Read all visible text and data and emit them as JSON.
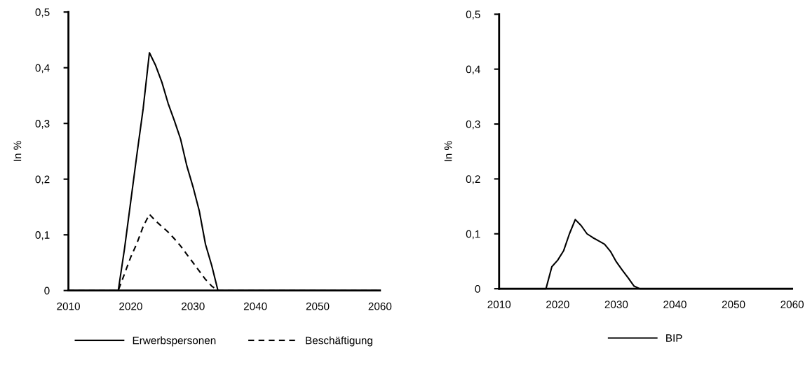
{
  "chart_data": [
    {
      "type": "line",
      "ylabel": "In %",
      "x": [
        2010,
        2011,
        2012,
        2013,
        2014,
        2015,
        2016,
        2017,
        2018,
        2019,
        2020,
        2021,
        2022,
        2023,
        2024,
        2025,
        2026,
        2027,
        2028,
        2029,
        2030,
        2031,
        2032,
        2033,
        2034,
        2035,
        2036,
        2037,
        2038,
        2039,
        2040,
        2041,
        2042,
        2043,
        2044,
        2045,
        2046,
        2047,
        2048,
        2049,
        2050,
        2051,
        2052,
        2053,
        2054,
        2055,
        2056,
        2057,
        2058,
        2059,
        2060
      ],
      "series": [
        {
          "name": "Erwerbspersonen",
          "color": "#000000",
          "line_style": "solid",
          "values": [
            0,
            0,
            0,
            0,
            0,
            0,
            0,
            0,
            0,
            0.075,
            0.16,
            0.245,
            0.327,
            0.427,
            0.404,
            0.374,
            0.336,
            0.305,
            0.272,
            0.224,
            0.186,
            0.143,
            0.083,
            0.045,
            0,
            0,
            0,
            0,
            0,
            0,
            0,
            0,
            0,
            0,
            0,
            0,
            0,
            0,
            0,
            0,
            0,
            0,
            0,
            0,
            0,
            0,
            0,
            0,
            0,
            0,
            0
          ]
        },
        {
          "name": "Beschäftigung",
          "color": "#000000",
          "line_style": "dashed",
          "values": [
            0,
            0,
            0,
            0,
            0,
            0,
            0,
            0,
            0,
            0.03,
            0.06,
            0.085,
            0.115,
            0.137,
            0.125,
            0.115,
            0.105,
            0.093,
            0.08,
            0.065,
            0.05,
            0.035,
            0.02,
            0.008,
            0,
            0,
            0,
            0,
            0,
            0,
            0,
            0,
            0,
            0,
            0,
            0,
            0,
            0,
            0,
            0,
            0,
            0,
            0,
            0,
            0,
            0,
            0,
            0,
            0,
            0,
            0
          ]
        }
      ],
      "xlim": [
        2010,
        2060
      ],
      "xticks": [
        2010,
        2020,
        2030,
        2040,
        2050,
        2060
      ],
      "ylim": [
        0,
        0.5
      ],
      "yticks": [
        0,
        {
          "value": 0.1,
          "label": "0,1"
        },
        {
          "value": 0.2,
          "label": "0,2"
        },
        {
          "value": 0.3,
          "label": "0,3"
        },
        {
          "value": 0.4,
          "label": "0,4"
        },
        {
          "value": 0.5,
          "label": "0,5"
        }
      ],
      "grid": false,
      "legend": "bottom"
    },
    {
      "type": "line",
      "ylabel": "In %",
      "x": [
        2010,
        2011,
        2012,
        2013,
        2014,
        2015,
        2016,
        2017,
        2018,
        2019,
        2020,
        2021,
        2022,
        2023,
        2024,
        2025,
        2026,
        2027,
        2028,
        2029,
        2030,
        2031,
        2032,
        2033,
        2034,
        2035,
        2036,
        2037,
        2038,
        2039,
        2040,
        2041,
        2042,
        2043,
        2044,
        2045,
        2046,
        2047,
        2048,
        2049,
        2050,
        2051,
        2052,
        2053,
        2054,
        2055,
        2056,
        2057,
        2058,
        2059,
        2060
      ],
      "series": [
        {
          "name": "BIP",
          "color": "#000000",
          "line_style": "solid",
          "values": [
            0,
            0,
            0,
            0,
            0,
            0,
            0,
            0,
            0,
            0.04,
            0.052,
            0.069,
            0.1,
            0.126,
            0.115,
            0.1,
            0.093,
            0.087,
            0.081,
            0.068,
            0.049,
            0.034,
            0.02,
            0.005,
            0,
            0,
            0,
            0,
            0,
            0,
            0,
            0,
            0,
            0,
            0,
            0,
            0,
            0,
            0,
            0,
            0,
            0,
            0,
            0,
            0,
            0,
            0,
            0,
            0,
            0,
            0
          ]
        }
      ],
      "xlim": [
        2010,
        2060
      ],
      "xticks": [
        2010,
        2020,
        2030,
        2040,
        2050,
        2060
      ],
      "ylim": [
        0,
        0.5
      ],
      "yticks": [
        0,
        {
          "value": 0.1,
          "label": "0,1"
        },
        {
          "value": 0.2,
          "label": "0,2"
        },
        {
          "value": 0.3,
          "label": "0,3"
        },
        {
          "value": 0.4,
          "label": "0,4"
        },
        {
          "value": 0.5,
          "label": "0,5"
        }
      ],
      "grid": false,
      "legend": "bottom"
    }
  ]
}
